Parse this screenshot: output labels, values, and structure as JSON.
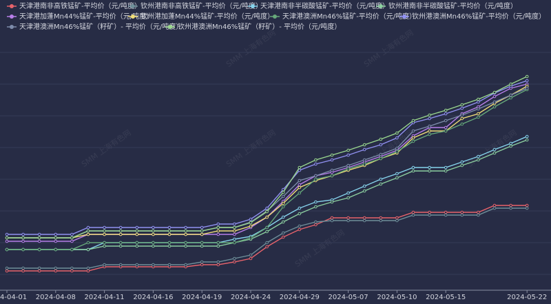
{
  "chart_data": {
    "type": "line",
    "watermark": "SMM 上海有色网",
    "categories": [
      "2024-04-01",
      null,
      null,
      "2024-04-08",
      null,
      null,
      "2024-04-11",
      null,
      null,
      "2024-04-16",
      null,
      null,
      "2024-04-19",
      null,
      null,
      "2024-04-24",
      null,
      null,
      "2024-04-29",
      null,
      null,
      "2024-05-07",
      null,
      null,
      "2024-05-10",
      null,
      null,
      "2024-05-15",
      null,
      null,
      null,
      null,
      "2024-05-22"
    ],
    "ylim": [
      0,
      368
    ],
    "yticks": [
      23,
      69,
      115,
      161,
      207,
      253,
      299,
      345
    ],
    "grid": true,
    "series": [
      {
        "name": "天津港南非高铁锰矿-平均价（元/吨度）",
        "color": "#e8636b",
        "values": [
          28,
          28,
          28,
          28,
          28,
          28,
          34,
          34,
          34,
          34,
          34,
          34,
          37,
          37,
          41,
          46,
          63,
          77,
          88,
          95,
          105,
          105,
          105,
          105,
          105,
          113,
          113,
          113,
          113,
          113,
          123,
          123,
          123
        ]
      },
      {
        "name": "钦州港南非高铁锰矿-平均价（元/吨度）",
        "color": "#6f8f9a",
        "values": [
          32,
          32,
          32,
          32,
          32,
          32,
          37,
          37,
          37,
          37,
          37,
          37,
          41,
          41,
          46,
          51,
          69,
          83,
          93,
          99,
          101,
          101,
          101,
          101,
          101,
          109,
          109,
          109,
          109,
          109,
          119,
          119,
          119
        ]
      },
      {
        "name": "天津港南非半碳酸锰矿-平均价（元/吨度）",
        "color": "#86d3ec",
        "values": [
          59,
          59,
          59,
          59,
          59,
          59,
          69,
          69,
          69,
          69,
          69,
          69,
          69,
          69,
          74,
          78,
          91,
          106,
          119,
          128,
          131,
          141,
          151,
          161,
          169,
          178,
          178,
          178,
          186,
          194,
          204,
          213,
          223
        ]
      },
      {
        "name": "钦州港南非半碳酸锰矿-平均价（元/吨度）",
        "color": "#8ccfa0",
        "values": [
          59,
          59,
          59,
          59,
          59,
          59,
          64,
          64,
          64,
          64,
          64,
          64,
          64,
          64,
          69,
          74,
          85,
          99,
          111,
          121,
          128,
          134,
          144,
          154,
          163,
          173,
          173,
          173,
          181,
          189,
          199,
          209,
          218
        ]
      },
      {
        "name": "天津港加蓬Mn44%锰矿-平均价（元/吨度）",
        "color": "#b77ee9",
        "values": [
          71,
          71,
          71,
          71,
          71,
          81,
          81,
          81,
          81,
          81,
          81,
          81,
          81,
          81,
          81,
          91,
          106,
          129,
          153,
          166,
          171,
          178,
          186,
          194,
          203,
          224,
          236,
          236,
          256,
          266,
          281,
          293,
          299
        ]
      },
      {
        "name": "钦州港加蓬Mn44%锰矿-平均价（元/吨度）",
        "color": "#f0dd78",
        "values": [
          76,
          76,
          76,
          76,
          76,
          81,
          81,
          81,
          81,
          81,
          81,
          81,
          81,
          86,
          86,
          93,
          106,
          126,
          149,
          159,
          166,
          174,
          181,
          191,
          199,
          221,
          231,
          231,
          249,
          256,
          271,
          283,
          296
        ]
      },
      {
        "name": "天津港澳洲Mn46%锰矿-平均价（元/吨度）",
        "color": "#66a87a",
        "values": [
          59,
          59,
          59,
          59,
          59,
          69,
          69,
          69,
          69,
          69,
          69,
          69,
          69,
          69,
          69,
          76,
          91,
          121,
          141,
          161,
          166,
          176,
          183,
          191,
          201,
          216,
          226,
          231,
          241,
          251,
          266,
          279,
          291
        ]
      },
      {
        "name": "钦州港澳洲Mn46%锰矿-平均价（元/吨度）",
        "color": "#9191f2",
        "values": [
          81,
          81,
          81,
          81,
          81,
          91,
          91,
          91,
          91,
          91,
          91,
          91,
          91,
          96,
          96,
          103,
          119,
          146,
          174,
          183,
          189,
          196,
          204,
          211,
          221,
          243,
          249,
          256,
          264,
          273,
          286,
          296,
          304
        ]
      },
      {
        "name": "天津港澳洲Mn46%锰矿（籽矿）- 平均价（元/吨度）",
        "color": "#7d8cab",
        "values": [
          76,
          76,
          76,
          76,
          76,
          86,
          86,
          86,
          86,
          86,
          86,
          86,
          86,
          91,
          91,
          99,
          115,
          136,
          159,
          166,
          174,
          181,
          189,
          197,
          206,
          231,
          238,
          246,
          254,
          263,
          273,
          283,
          293
        ]
      },
      {
        "name": "钦州港澳洲Mn46%锰矿（籽矿）- 平均价（元/吨度）",
        "color": "#9ad88e",
        "values": [
          76,
          76,
          76,
          76,
          76,
          86,
          86,
          86,
          86,
          86,
          86,
          86,
          86,
          91,
          91,
          98,
          114,
          142,
          178,
          189,
          196,
          203,
          211,
          219,
          228,
          246,
          254,
          261,
          269,
          277,
          287,
          299,
          310
        ]
      }
    ]
  }
}
